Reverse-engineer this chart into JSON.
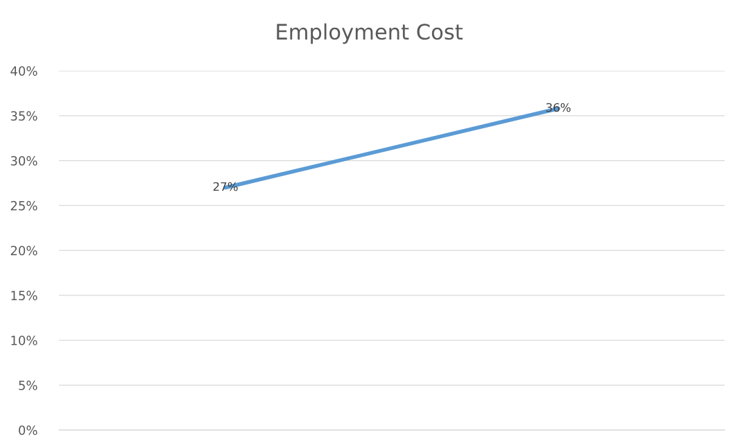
{
  "chart_data": {
    "type": "line",
    "title": "Employment Cost",
    "categories": [
      null,
      null
    ],
    "series": [
      {
        "color": "#5b9bd5",
        "values": [
          27,
          35.8
        ],
        "value_labels": [
          "27%",
          "36%"
        ]
      }
    ],
    "ylim": [
      0,
      40
    ],
    "yticks": [
      {
        "value": 0,
        "label": "0%"
      },
      {
        "value": 5,
        "label": "5%"
      },
      {
        "value": 10,
        "label": "10%"
      },
      {
        "value": 15,
        "label": "15%"
      },
      {
        "value": 20,
        "label": "20%"
      },
      {
        "value": 25,
        "label": "25%"
      },
      {
        "value": 30,
        "label": "30%"
      },
      {
        "value": 35,
        "label": "35%"
      },
      {
        "value": 40,
        "label": "40%"
      }
    ],
    "grid": "y",
    "legend": false,
    "marker": "none",
    "line_style": "solid"
  }
}
